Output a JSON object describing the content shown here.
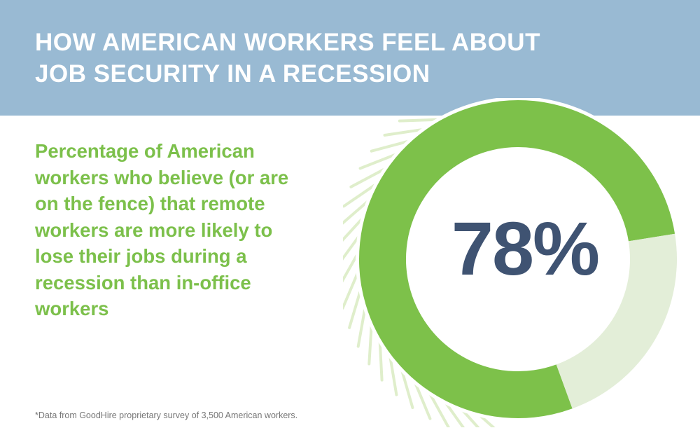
{
  "header": {
    "title": "HOW AMERICAN WORKERS FEEL ABOUT JOB SECURITY IN A RECESSION"
  },
  "subtitle": "Percentage of American workers who believe (or are on the fence) that remote workers are more likely to lose their jobs during a recession than in-office workers",
  "chart_data": {
    "type": "pie",
    "style": "donut",
    "value_label": "78%",
    "slices": [
      {
        "value": 78,
        "color": "#7dc14a"
      },
      {
        "value": 22,
        "color": "#e3eed8"
      }
    ]
  },
  "footnote": "*Data from GoodHire proprietary survey of 3,500 American workers.",
  "colors": {
    "banner": "#99bad3",
    "title": "#ffffff",
    "accent_green": "#7dc14a",
    "light_green": "#e3eed8",
    "value_text": "#3f5372",
    "decor_stripes": "#dfeecb"
  }
}
